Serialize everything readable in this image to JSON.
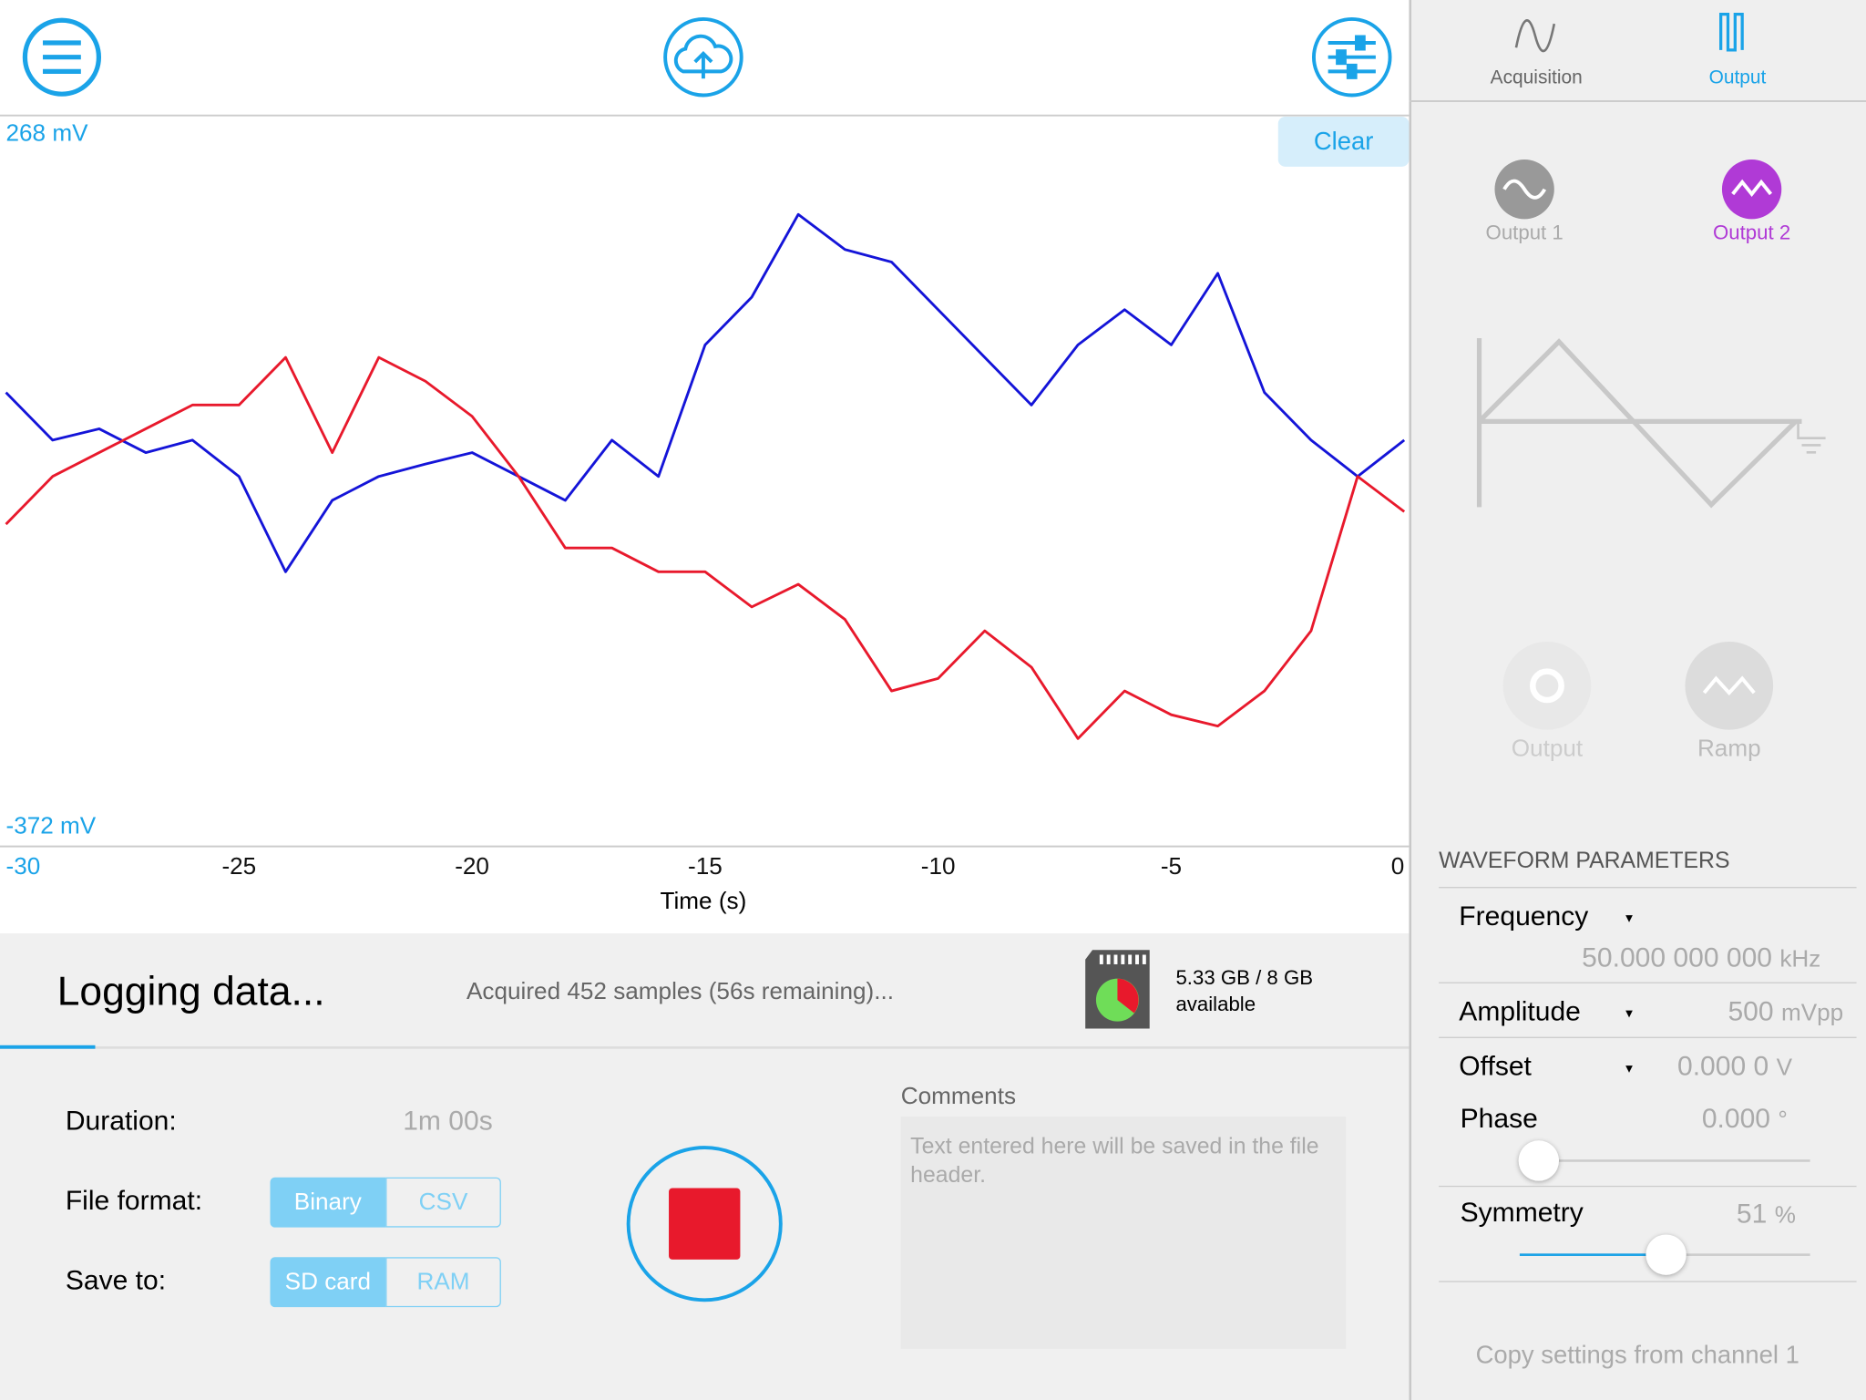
{
  "chart_data": {
    "type": "line",
    "x_label": "Time (s)",
    "x": [
      -30,
      -29,
      -28,
      -27,
      -26,
      -25,
      -24,
      -23,
      -22,
      -21,
      -20,
      -19,
      -18,
      -17,
      -16,
      -15,
      -14,
      -13,
      -12,
      -11,
      -10,
      -9,
      -8,
      -7,
      -6,
      -5,
      -4,
      -3,
      -2,
      -1,
      0
    ],
    "series": [
      {
        "color": "#1414d8",
        "values": [
          27,
          -15,
          -5,
          -26,
          -15,
          -47,
          -131,
          -68,
          -47,
          -36,
          -26,
          -47,
          -68,
          -15,
          -47,
          69,
          111,
          184,
          153,
          142,
          100,
          58,
          16,
          69,
          100,
          69,
          132,
          27,
          -15,
          -47,
          -15
        ]
      },
      {
        "color": "#e8192c",
        "values": [
          -89,
          -47,
          -26,
          -5,
          16,
          16,
          58,
          -26,
          58,
          37,
          6,
          -47,
          -110,
          -110,
          -131,
          -131,
          -162,
          -142,
          -173,
          -236,
          -225,
          -183,
          -215,
          -278,
          -236,
          -257,
          -267,
          -236,
          -183,
          -47,
          -78
        ]
      }
    ],
    "xlim": [
      -30,
      0
    ],
    "ylim": [
      -372,
      268
    ],
    "xticks": [
      -30,
      -25,
      -20,
      -15,
      -10,
      -5,
      0
    ],
    "yticks": [
      {
        "value": 268,
        "label": "268 mV"
      },
      {
        "value": -372,
        "label": "-372 mV"
      }
    ]
  },
  "clear_button": "Clear",
  "logging": {
    "title": "Logging data...",
    "status": "Acquired 452 samples (56s remaining)...",
    "storage": "5.33 GB / 8 GB",
    "storage_note": "available"
  },
  "settings": {
    "duration_label": "Duration:",
    "duration_value": "1m 00s",
    "file_format_label": "File format:",
    "file_format_options": [
      "Binary",
      "CSV"
    ],
    "save_to_label": "Save to:",
    "save_to_options": [
      "SD card",
      "RAM"
    ],
    "comments_label": "Comments",
    "comments_placeholder": "Text entered here will be saved in the file header."
  },
  "panel": {
    "tabs": [
      "Acquisition",
      "Output"
    ],
    "outputs": [
      "Output 1",
      "Output 2"
    ],
    "waveform_buttons": [
      "Output",
      "Ramp"
    ],
    "section_title": "WAVEFORM PARAMETERS",
    "params": [
      {
        "label": "Frequency",
        "value": "50.000 000 000",
        "unit": "kHz"
      },
      {
        "label": "Amplitude",
        "value": "500",
        "unit": "mVpp"
      },
      {
        "label": "Offset",
        "value": "0.000 0",
        "unit": "V"
      },
      {
        "label": "Phase",
        "value": "0.000",
        "unit": "°"
      },
      {
        "label": "Symmetry",
        "value": "51",
        "unit": "%"
      }
    ],
    "copy_button": "Copy settings from channel 1"
  }
}
